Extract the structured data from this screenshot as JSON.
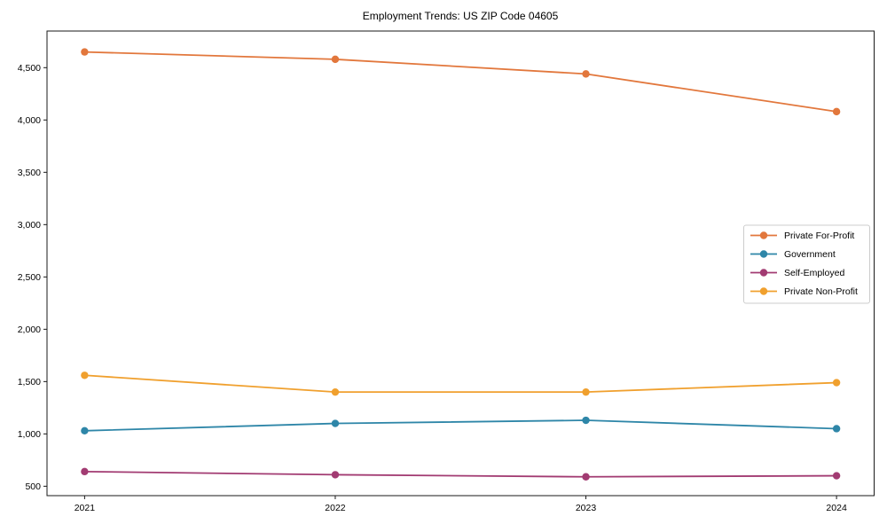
{
  "chart_data": {
    "type": "line",
    "title": "Employment Trends: US ZIP Code 04605",
    "xlabel": "",
    "ylabel": "",
    "x": [
      2021,
      2022,
      2023,
      2024
    ],
    "x_tick_labels": [
      "2021",
      "2022",
      "2023",
      "2024"
    ],
    "series": [
      {
        "name": "Private For-Profit",
        "color": "#e2773c",
        "values": [
          4650,
          4580,
          4440,
          4080
        ]
      },
      {
        "name": "Government",
        "color": "#2e86a8",
        "values": [
          1030,
          1100,
          1130,
          1050
        ]
      },
      {
        "name": "Self-Employed",
        "color": "#a23b72",
        "values": [
          640,
          610,
          590,
          600
        ]
      },
      {
        "name": "Private Non-Profit",
        "color": "#f0a02e",
        "values": [
          1560,
          1400,
          1400,
          1490
        ]
      }
    ],
    "yticks": [
      500,
      1000,
      1500,
      2000,
      2500,
      3000,
      3500,
      4000,
      4500
    ],
    "ytick_labels": [
      "500",
      "1,000",
      "1,500",
      "2,000",
      "2,500",
      "3,000",
      "3,500",
      "4,000",
      "4,500"
    ],
    "xlim": [
      2020.85,
      2024.15
    ],
    "ylim": [
      410,
      4850
    ],
    "grid": false,
    "marker": "circle",
    "legend_position": "center-right",
    "axis_color": "#1a1a1a",
    "legend_border_color": "#cccccc",
    "background_color": "#ffffff"
  }
}
